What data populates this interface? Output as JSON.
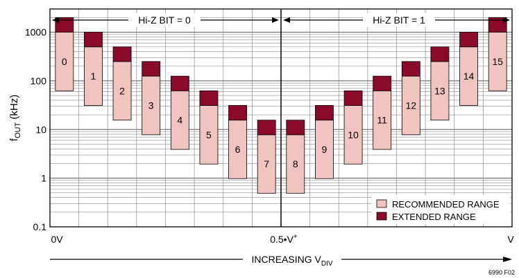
{
  "chart_data": {
    "type": "bar",
    "ylabel": {
      "main": "f",
      "sub": "OUT",
      "rest": " (kHz)"
    },
    "y_scale": "log",
    "ylim": [
      0.1,
      3000
    ],
    "y_ticks": [
      {
        "value": 1000,
        "label": "1000"
      },
      {
        "value": 100,
        "label": "100"
      },
      {
        "value": 10,
        "label": "10"
      },
      {
        "value": 1,
        "label": "1"
      },
      {
        "value": 0.1,
        "label": "0.1"
      }
    ],
    "x_tick_labels": {
      "left": "0V",
      "middle": {
        "main": "0.5•V",
        "sup": "+"
      },
      "right": "V"
    },
    "xlabel": {
      "main": "INCREASING V",
      "sub": "DIV"
    },
    "sections": [
      {
        "label": "Hi-Z BIT = 0"
      },
      {
        "label": "Hi-Z BIT = 1"
      }
    ],
    "series": [
      {
        "name": "RECOMMENDED RANGE",
        "color": "#f2c4c0"
      },
      {
        "name": "EXTENDED RANGE",
        "color": "#8b0a2a"
      }
    ],
    "bars": [
      {
        "label": "0",
        "recommended": [
          62.5,
          1000
        ],
        "extended": [
          1000,
          2000
        ]
      },
      {
        "label": "1",
        "recommended": [
          31.25,
          500
        ],
        "extended": [
          500,
          1000
        ]
      },
      {
        "label": "2",
        "recommended": [
          15.6,
          250
        ],
        "extended": [
          250,
          500
        ]
      },
      {
        "label": "3",
        "recommended": [
          7.8,
          125
        ],
        "extended": [
          125,
          250
        ]
      },
      {
        "label": "4",
        "recommended": [
          3.9,
          62.5
        ],
        "extended": [
          62.5,
          125
        ]
      },
      {
        "label": "5",
        "recommended": [
          1.95,
          31.25
        ],
        "extended": [
          31.25,
          62.5
        ]
      },
      {
        "label": "6",
        "recommended": [
          0.98,
          15.6
        ],
        "extended": [
          15.6,
          31.25
        ]
      },
      {
        "label": "7",
        "recommended": [
          0.49,
          7.8
        ],
        "extended": [
          7.8,
          15.6
        ]
      },
      {
        "label": "8",
        "recommended": [
          0.49,
          7.8
        ],
        "extended": [
          7.8,
          15.6
        ]
      },
      {
        "label": "9",
        "recommended": [
          0.98,
          15.6
        ],
        "extended": [
          15.6,
          31.25
        ]
      },
      {
        "label": "10",
        "recommended": [
          1.95,
          31.25
        ],
        "extended": [
          31.25,
          62.5
        ]
      },
      {
        "label": "11",
        "recommended": [
          3.9,
          62.5
        ],
        "extended": [
          62.5,
          125
        ]
      },
      {
        "label": "12",
        "recommended": [
          7.8,
          125
        ],
        "extended": [
          125,
          250
        ]
      },
      {
        "label": "13",
        "recommended": [
          15.6,
          250
        ],
        "extended": [
          250,
          500
        ]
      },
      {
        "label": "14",
        "recommended": [
          31.25,
          500
        ],
        "extended": [
          500,
          1000
        ]
      },
      {
        "label": "15",
        "recommended": [
          62.5,
          1000
        ],
        "extended": [
          1000,
          2000
        ]
      }
    ],
    "grid": true,
    "legend_position": "bottom-right",
    "figure_id": "6990 F02"
  }
}
